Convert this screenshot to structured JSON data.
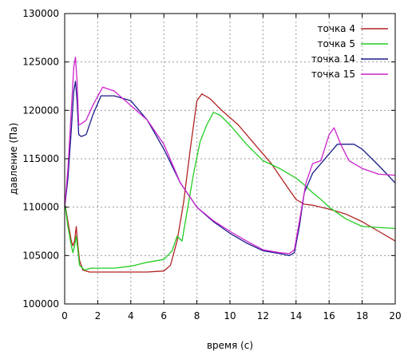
{
  "chart_data": {
    "type": "line",
    "title": "",
    "xlabel": "время (с)",
    "ylabel": "давление (Па)",
    "xlim": [
      0,
      20
    ],
    "ylim": [
      100000,
      130000
    ],
    "xticks": [
      0,
      2,
      4,
      6,
      8,
      10,
      12,
      14,
      16,
      18,
      20
    ],
    "xtick_labels": [
      "0",
      "2",
      "4",
      "6",
      "8",
      "10",
      "12",
      "14",
      "16",
      "18",
      "20"
    ],
    "yticks": [
      100000,
      105000,
      110000,
      115000,
      120000,
      125000,
      130000
    ],
    "ytick_labels": [
      "100000",
      "105000",
      "110000",
      "115000",
      "120000",
      "125000",
      "130000"
    ],
    "grid": true,
    "legend_position": "top-right",
    "series": [
      {
        "name": "точка 4",
        "color": "#b22222",
        "x": [
          0,
          0.2,
          0.4,
          0.5,
          0.6,
          0.7,
          0.8,
          0.9,
          1.1,
          1.5,
          2,
          3,
          4,
          5,
          6,
          6.4,
          6.8,
          7.2,
          7.6,
          8,
          8.3,
          8.8,
          9.5,
          10.5,
          11.5,
          12.5,
          13.5,
          14,
          14.5,
          15,
          16,
          17,
          18,
          19,
          20
        ],
        "y": [
          110500,
          108500,
          106500,
          106000,
          106500,
          108000,
          106000,
          104500,
          103500,
          103300,
          103300,
          103300,
          103300,
          103300,
          103400,
          104000,
          106500,
          110500,
          116000,
          121000,
          121700,
          121200,
          120000,
          118500,
          116500,
          114500,
          112000,
          110800,
          110300,
          110200,
          109800,
          109300,
          108500,
          107500,
          106500
        ]
      },
      {
        "name": "точка 5",
        "color": "#22cc22",
        "x": [
          0,
          0.2,
          0.4,
          0.5,
          0.6,
          0.7,
          0.8,
          0.9,
          1.2,
          1.6,
          2,
          3,
          4,
          5,
          6,
          6.5,
          6.8,
          7.1,
          7.4,
          7.8,
          8.2,
          8.6,
          9,
          9.4,
          10,
          11,
          12,
          13,
          14,
          14.5,
          15,
          15.5,
          16,
          17,
          18,
          19,
          20
        ],
        "y": [
          110500,
          108000,
          106000,
          105300,
          106000,
          107000,
          105500,
          104000,
          103500,
          103700,
          103700,
          103700,
          103900,
          104300,
          104600,
          105500,
          107000,
          106500,
          109500,
          113500,
          116800,
          118500,
          119800,
          119500,
          118500,
          116500,
          114800,
          114000,
          113000,
          112300,
          111500,
          110800,
          110000,
          108800,
          108000,
          107900,
          107800
        ]
      },
      {
        "name": "точка 14",
        "color": "#1a1a8c",
        "x": [
          0,
          0.2,
          0.4,
          0.55,
          0.65,
          0.75,
          0.85,
          1,
          1.3,
          1.7,
          2.2,
          3,
          4,
          5,
          6,
          7,
          8,
          9,
          10,
          11,
          12,
          13,
          13.6,
          13.9,
          14.2,
          14.5,
          15,
          15.5,
          16,
          16.5,
          17,
          17.5,
          18,
          19,
          20
        ],
        "y": [
          110000,
          113000,
          118000,
          122000,
          123000,
          121000,
          117500,
          117300,
          117500,
          119500,
          121500,
          121500,
          121000,
          119000,
          116000,
          112500,
          110000,
          108500,
          107300,
          106300,
          105500,
          105200,
          105000,
          105300,
          108000,
          111500,
          113500,
          114500,
          115500,
          116500,
          116500,
          116500,
          116000,
          114300,
          112500
        ]
      },
      {
        "name": "точка 15",
        "color": "#cc22cc",
        "x": [
          0,
          0.2,
          0.4,
          0.55,
          0.65,
          0.75,
          0.85,
          1,
          1.3,
          1.7,
          2.3,
          3,
          4,
          5,
          6,
          7,
          8,
          9,
          10,
          11,
          12,
          13,
          13.6,
          13.9,
          14.2,
          14.6,
          15,
          15.5,
          16,
          16.3,
          16.7,
          17.2,
          18,
          19,
          20
        ],
        "y": [
          110000,
          114000,
          120000,
          124500,
          125500,
          123000,
          118500,
          118600,
          119000,
          120500,
          122400,
          122000,
          120500,
          119000,
          116500,
          112500,
          110000,
          108600,
          107500,
          106500,
          105600,
          105300,
          105200,
          105600,
          108500,
          112500,
          114500,
          114800,
          117500,
          118200,
          116500,
          114800,
          114000,
          113400,
          113300
        ]
      }
    ]
  }
}
